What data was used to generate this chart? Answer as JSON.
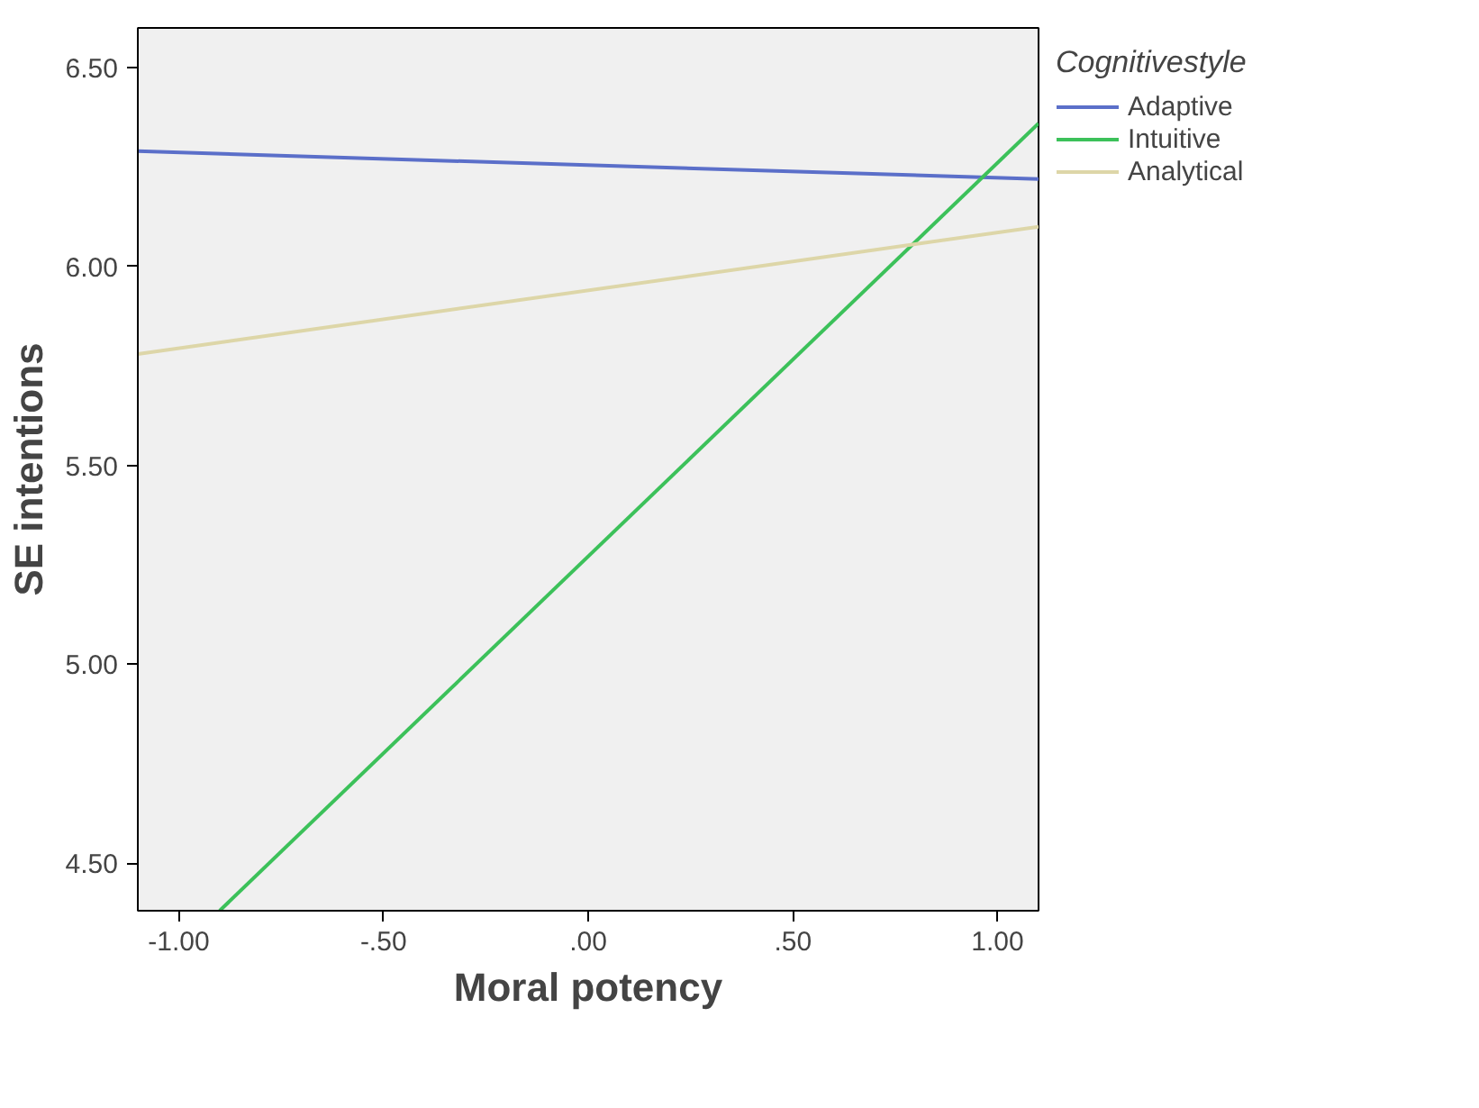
{
  "chart_data": {
    "type": "line",
    "xlabel": "Moral potency",
    "ylabel": "SE intentions",
    "legend_title": "Cognitivestyle",
    "x": [
      -1.1,
      1.1
    ],
    "series": [
      {
        "name": "Adaptive",
        "color": "#5b6fc9",
        "values": [
          6.29,
          6.22
        ]
      },
      {
        "name": "Intuitive",
        "color": "#3cc15a",
        "x": [
          -0.9,
          1.1
        ],
        "values": [
          4.38,
          6.36
        ]
      },
      {
        "name": "Analytical",
        "color": "#ddd6a8",
        "values": [
          5.78,
          6.1
        ]
      }
    ],
    "xlim": [
      -1.1,
      1.1
    ],
    "ylim": [
      4.38,
      6.6
    ],
    "xticks": [
      {
        "value": -1,
        "label": "-1.00"
      },
      {
        "value": -0.5,
        "label": "-.50"
      },
      {
        "value": 0,
        "label": ".00"
      },
      {
        "value": 0.5,
        "label": ".50"
      },
      {
        "value": 1,
        "label": "1.00"
      }
    ],
    "yticks": [
      {
        "value": 4.5,
        "label": "4.50"
      },
      {
        "value": 5,
        "label": "5.00"
      },
      {
        "value": 5.5,
        "label": "5.50"
      },
      {
        "value": 6,
        "label": "6.00"
      },
      {
        "value": 6.5,
        "label": "6.50"
      }
    ],
    "grid": false,
    "legend": "right",
    "marker": "none",
    "line_style": "solid"
  }
}
